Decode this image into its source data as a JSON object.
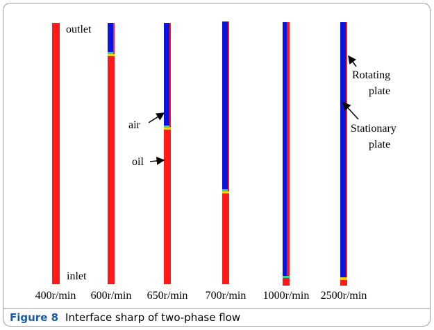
{
  "figure": {
    "column_labels": [
      "400r/min",
      "600r/min",
      "650r/min",
      "700r/min",
      "1000r/min",
      "2500r/min"
    ],
    "annotations": {
      "outlet": "outlet",
      "inlet": "inlet",
      "air": "air",
      "oil": "oil",
      "rotating": [
        "Rotating",
        "plate"
      ],
      "stationary": [
        "Stationary",
        "plate"
      ]
    }
  },
  "caption": {
    "label": "Figure 8",
    "text": "Interface sharp of two-phase flow"
  }
}
